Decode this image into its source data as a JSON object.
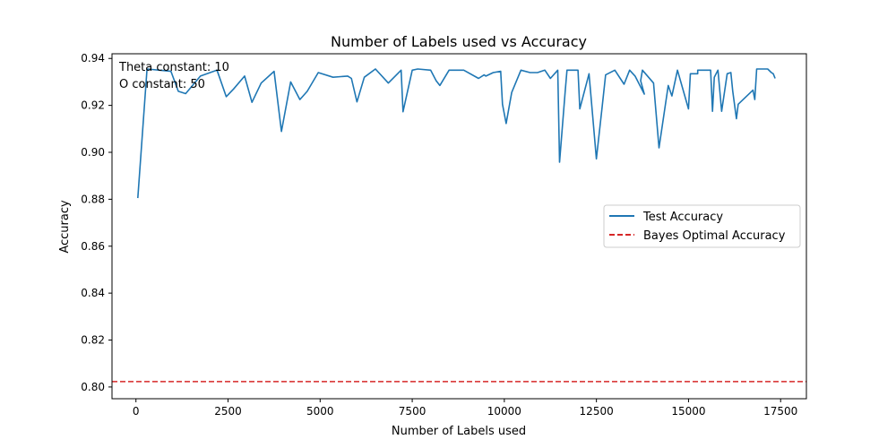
{
  "chart_data": {
    "type": "line",
    "title": "Number of Labels used vs Accuracy",
    "xlabel": "Number of Labels used",
    "ylabel": "Accuracy",
    "xlim": [
      -650,
      18200
    ],
    "ylim": [
      0.795,
      0.942
    ],
    "xticks": [
      0,
      2500,
      5000,
      7500,
      10000,
      12500,
      15000,
      17500
    ],
    "xtick_labels": [
      "0",
      "2500",
      "5000",
      "7500",
      "10000",
      "12500",
      "15000",
      "17500"
    ],
    "yticks": [
      0.8,
      0.82,
      0.84,
      0.86,
      0.88,
      0.9,
      0.92,
      0.94
    ],
    "ytick_labels": [
      "0.80",
      "0.82",
      "0.84",
      "0.86",
      "0.88",
      "0.90",
      "0.92",
      "0.94"
    ],
    "grid": false,
    "legend_position": "center-right",
    "annotations": [
      "Theta constant: 10",
      "O constant: 50"
    ],
    "series": [
      {
        "name": "Test Accuracy",
        "color": "#1f77b4",
        "style": "solid",
        "x": [
          50,
          300,
          950,
          1150,
          1350,
          1750,
          2200,
          2450,
          2650,
          2950,
          3150,
          3400,
          3750,
          3950,
          4200,
          4450,
          4650,
          4950,
          5350,
          5750,
          5850,
          6000,
          6200,
          6500,
          6850,
          7200,
          7250,
          7500,
          7650,
          8000,
          8150,
          8250,
          8500,
          8900,
          9300,
          9450,
          9500,
          9700,
          9900,
          9950,
          10050,
          10200,
          10450,
          10700,
          10900,
          11100,
          11250,
          11450,
          11500,
          11650,
          11700,
          12000,
          12050,
          12300,
          12500,
          12650,
          12750,
          13000,
          13250,
          13400,
          13550,
          13800,
          13700,
          13750,
          14050,
          14200,
          14450,
          14550,
          14700,
          15000,
          15050,
          15250,
          15250,
          15600,
          15650,
          15700,
          15800,
          15900,
          16050,
          16150,
          16200,
          16300,
          16350,
          16750,
          16800,
          16850,
          17000,
          17150,
          17250,
          17300,
          17350
        ],
        "y": [
          0.8805,
          0.9355,
          0.9345,
          0.926,
          0.925,
          0.9325,
          0.935,
          0.9237,
          0.927,
          0.9325,
          0.9213,
          0.9295,
          0.9345,
          0.9089,
          0.93,
          0.9225,
          0.926,
          0.934,
          0.932,
          0.9325,
          0.9315,
          0.9215,
          0.932,
          0.9355,
          0.9295,
          0.935,
          0.9173,
          0.935,
          0.9355,
          0.935,
          0.9305,
          0.9285,
          0.935,
          0.935,
          0.9315,
          0.933,
          0.9325,
          0.934,
          0.9345,
          0.9205,
          0.9123,
          0.9255,
          0.935,
          0.934,
          0.934,
          0.935,
          0.9315,
          0.935,
          0.8958,
          0.9255,
          0.935,
          0.935,
          0.9185,
          0.9335,
          0.8972,
          0.9185,
          0.933,
          0.935,
          0.929,
          0.935,
          0.9325,
          0.9248,
          0.9305,
          0.935,
          0.9295,
          0.9019,
          0.9285,
          0.924,
          0.935,
          0.9185,
          0.9335,
          0.9335,
          0.935,
          0.935,
          0.9175,
          0.932,
          0.935,
          0.9175,
          0.9335,
          0.934,
          0.926,
          0.9143,
          0.9205,
          0.9265,
          0.9225,
          0.9355,
          0.9355,
          0.9355,
          0.934,
          0.9335,
          0.9315
        ]
      },
      {
        "name": "Bayes Optimal Accuracy",
        "color": "#d62728",
        "style": "dashed",
        "y_constant": 0.8023
      }
    ]
  }
}
